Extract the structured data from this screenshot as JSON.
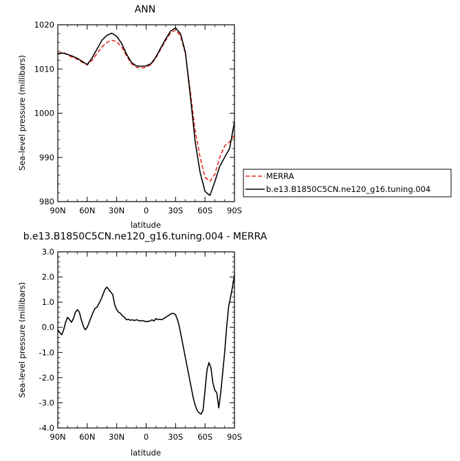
{
  "chart_data": [
    {
      "type": "line",
      "title": "ANN",
      "xlabel": "latitude",
      "ylabel": "Sea-level pressure (millibars)",
      "xlim": [
        90,
        -90
      ],
      "ylim": [
        980,
        1020
      ],
      "x_ticks": [
        90,
        60,
        30,
        0,
        -30,
        -60,
        -90
      ],
      "x_tick_labels": [
        "90N",
        "60N",
        "30N",
        "0",
        "30S",
        "60S",
        "90S"
      ],
      "y_ticks": [
        980,
        990,
        1000,
        1010,
        1020
      ],
      "y_tick_labels": [
        "980",
        "990",
        "1000",
        "1010",
        "1020"
      ],
      "grid": false,
      "legend": "right",
      "series": [
        {
          "name": "MERRA",
          "color": "#e8281e",
          "dash": "dashed",
          "x": [
            90,
            85,
            80,
            75,
            70,
            65,
            60,
            55,
            50,
            45,
            40,
            35,
            30,
            25,
            20,
            15,
            10,
            5,
            0,
            -5,
            -10,
            -15,
            -20,
            -25,
            -30,
            -35,
            -40,
            -45,
            -50,
            -55,
            -60,
            -65,
            -70,
            -75,
            -80,
            -85,
            -90
          ],
          "y": [
            1013.5,
            1013.8,
            1013.2,
            1012.6,
            1012.2,
            1011.5,
            1010.9,
            1012.0,
            1013.5,
            1015.0,
            1016.0,
            1016.5,
            1016.2,
            1015.0,
            1013.0,
            1011.2,
            1010.4,
            1010.2,
            1010.4,
            1011.0,
            1012.5,
            1014.5,
            1016.5,
            1018.2,
            1018.8,
            1017.5,
            1013.5,
            1005.0,
            996.0,
            990.0,
            985.5,
            984.6,
            986.2,
            990.0,
            992.6,
            993.5,
            995.0
          ]
        },
        {
          "name": "b.e13.B1850C5CN.ne120_g16.tuning.004",
          "color": "#000000",
          "dash": "solid",
          "x": [
            90,
            85,
            80,
            75,
            70,
            65,
            60,
            55,
            50,
            45,
            40,
            35,
            30,
            25,
            20,
            15,
            10,
            5,
            0,
            -5,
            -10,
            -15,
            -20,
            -25,
            -30,
            -35,
            -40,
            -45,
            -50,
            -55,
            -60,
            -65,
            -70,
            -75,
            -80,
            -85,
            -90
          ],
          "y": [
            1013.4,
            1013.6,
            1013.3,
            1012.9,
            1012.4,
            1011.7,
            1011.0,
            1012.5,
            1014.5,
            1016.5,
            1017.6,
            1018.1,
            1017.4,
            1015.8,
            1013.4,
            1011.5,
            1010.7,
            1010.6,
            1010.7,
            1011.2,
            1012.7,
            1014.8,
            1016.8,
            1018.6,
            1019.3,
            1018.0,
            1013.8,
            1004.0,
            993.5,
            986.6,
            982.3,
            981.4,
            984.5,
            988.0,
            990.0,
            992.0,
            998.0
          ]
        }
      ]
    },
    {
      "type": "line",
      "title": "b.e13.B1850C5CN.ne120_g16.tuning.004 - MERRA",
      "xlabel": "latitude",
      "ylabel": "Sea-level pressure (millibars)",
      "xlim": [
        90,
        -90
      ],
      "ylim": [
        -4.0,
        3.0
      ],
      "x_ticks": [
        90,
        60,
        30,
        0,
        -30,
        -60,
        -90
      ],
      "x_tick_labels": [
        "90N",
        "60N",
        "30N",
        "0",
        "30S",
        "60S",
        "90S"
      ],
      "y_ticks": [
        -4,
        -3,
        -2,
        -1,
        0,
        1,
        2,
        3
      ],
      "y_tick_labels": [
        "-4.0",
        "-3.0",
        "-2.0",
        "-1.0",
        "0.0",
        "1.0",
        "2.0",
        "3.0"
      ],
      "grid": false,
      "series": [
        {
          "color": "#000000",
          "dash": "solid",
          "x": [
            90,
            88,
            86,
            84,
            82,
            80,
            78,
            76,
            74,
            72,
            70,
            68,
            66,
            64,
            62,
            60,
            58,
            56,
            54,
            52,
            50,
            48,
            46,
            44,
            42,
            40,
            38,
            36,
            34,
            32,
            30,
            28,
            26,
            24,
            22,
            20,
            18,
            16,
            14,
            12,
            10,
            8,
            6,
            4,
            2,
            0,
            -2,
            -4,
            -6,
            -8,
            -10,
            -12,
            -14,
            -16,
            -18,
            -20,
            -22,
            -24,
            -26,
            -28,
            -30,
            -32,
            -34,
            -36,
            -38,
            -40,
            -42,
            -44,
            -46,
            -48,
            -50,
            -52,
            -54,
            -56,
            -58,
            -60,
            -62,
            -64,
            -66,
            -68,
            -70,
            -72,
            -74,
            -76,
            -78,
            -80,
            -82,
            -84,
            -86,
            -88,
            -90
          ],
          "y": [
            -0.1,
            -0.2,
            -0.3,
            -0.1,
            0.2,
            0.4,
            0.3,
            0.2,
            0.35,
            0.6,
            0.7,
            0.6,
            0.3,
            0.05,
            -0.1,
            0.0,
            0.2,
            0.4,
            0.6,
            0.75,
            0.8,
            0.95,
            1.1,
            1.3,
            1.5,
            1.6,
            1.5,
            1.4,
            1.3,
            0.9,
            0.7,
            0.6,
            0.55,
            0.45,
            0.4,
            0.3,
            0.32,
            0.28,
            0.3,
            0.27,
            0.3,
            0.28,
            0.25,
            0.27,
            0.25,
            0.22,
            0.24,
            0.25,
            0.3,
            0.25,
            0.35,
            0.3,
            0.32,
            0.3,
            0.35,
            0.4,
            0.45,
            0.5,
            0.55,
            0.55,
            0.5,
            0.3,
            0.0,
            -0.4,
            -0.8,
            -1.2,
            -1.6,
            -2.0,
            -2.4,
            -2.8,
            -3.1,
            -3.3,
            -3.4,
            -3.45,
            -3.3,
            -2.5,
            -1.7,
            -1.4,
            -1.6,
            -2.2,
            -2.5,
            -2.6,
            -3.2,
            -2.6,
            -1.8,
            -1.0,
            0.0,
            0.8,
            1.2,
            1.6,
            2.1
          ]
        }
      ]
    }
  ]
}
